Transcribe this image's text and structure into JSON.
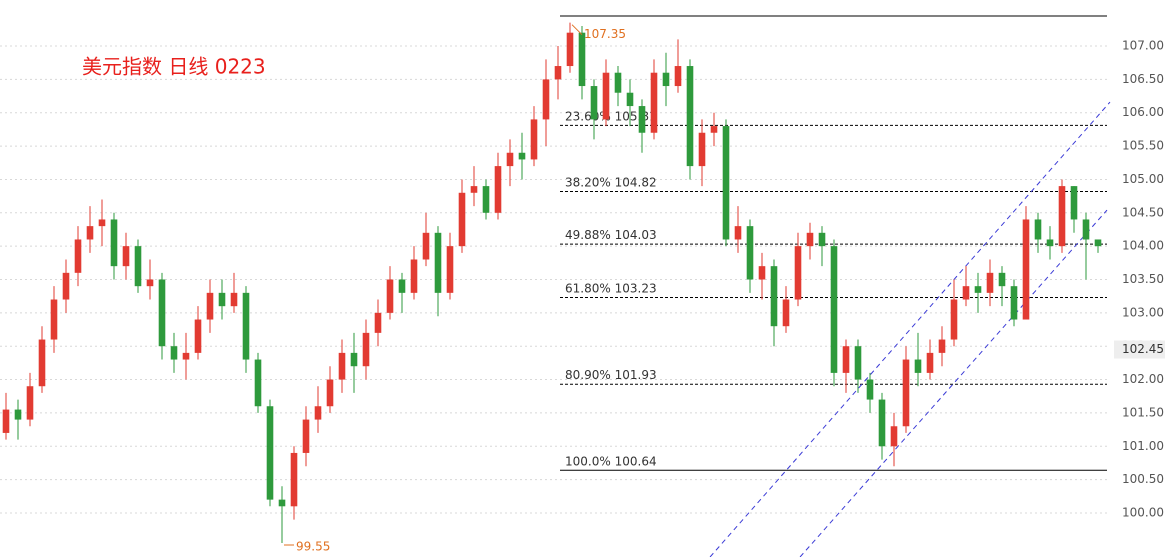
{
  "chart_data": {
    "type": "candlestick",
    "title": "美元指数 日线 0223",
    "up_color": "#e23b32",
    "down_color": "#2e9a3c",
    "xlim": [
      -0.5,
      92
    ],
    "ylim": [
      99.34,
      107.69
    ],
    "yticks": [
      {
        "value": 100,
        "label": "100.00"
      },
      {
        "value": 100.5,
        "label": "100.50"
      },
      {
        "value": 101,
        "label": "101.00"
      },
      {
        "value": 101.5,
        "label": "101.50"
      },
      {
        "value": 102,
        "label": "102.00"
      },
      {
        "value": 102.5,
        "label": "102.50"
      },
      {
        "value": 103,
        "label": "103.00"
      },
      {
        "value": 103.5,
        "label": "103.50"
      },
      {
        "value": 104,
        "label": "104.00"
      },
      {
        "value": 104.5,
        "label": "104.50"
      },
      {
        "value": 105,
        "label": "105.00"
      },
      {
        "value": 105.5,
        "label": "105.50"
      },
      {
        "value": 106,
        "label": "106.00"
      },
      {
        "value": 106.5,
        "label": "106.50"
      },
      {
        "value": 107,
        "label": "107.00"
      }
    ],
    "grid": true,
    "open": [
      101.2,
      101.55,
      101.4,
      101.9,
      102.6,
      103.2,
      103.6,
      104.1,
      104.3,
      104.4,
      103.7,
      104.0,
      103.4,
      103.5,
      102.5,
      102.3,
      102.4,
      102.9,
      103.3,
      103.1,
      103.3,
      102.3,
      101.6,
      100.2,
      100.1,
      100.9,
      101.4,
      101.6,
      102.0,
      102.4,
      102.2,
      102.7,
      103.0,
      103.5,
      103.3,
      103.8,
      104.2,
      103.3,
      104.0,
      104.8,
      104.9,
      104.5,
      105.2,
      105.4,
      105.3,
      105.9,
      106.5,
      106.7,
      107.2,
      106.4,
      105.9,
      106.6,
      106.3,
      106.1,
      105.7,
      106.6,
      106.4,
      106.7,
      105.2,
      105.7,
      105.8,
      104.1,
      104.3,
      103.5,
      103.7,
      102.8,
      103.2,
      104.0,
      104.2,
      104.0,
      102.1,
      102.5,
      102.0,
      101.7,
      101.0,
      101.3,
      102.3,
      102.1,
      102.4,
      102.6,
      103.2,
      103.4,
      103.3,
      103.6,
      103.4,
      102.9,
      104.4,
      104.1,
      104.0,
      104.9,
      104.4,
      104.1
    ],
    "high": [
      101.8,
      101.7,
      102.1,
      102.8,
      103.4,
      103.8,
      104.3,
      104.6,
      104.7,
      104.5,
      104.2,
      104.1,
      103.8,
      103.6,
      102.7,
      102.7,
      103.1,
      103.5,
      103.5,
      103.6,
      103.4,
      102.4,
      101.7,
      100.4,
      101.0,
      101.6,
      101.9,
      102.2,
      102.6,
      102.7,
      102.9,
      103.2,
      103.7,
      103.6,
      104.0,
      104.5,
      104.3,
      104.2,
      105.0,
      105.2,
      105.0,
      105.4,
      105.6,
      105.7,
      106.1,
      106.8,
      107.0,
      107.35,
      107.3,
      106.5,
      106.8,
      106.7,
      106.5,
      106.2,
      106.8,
      106.9,
      107.1,
      106.8,
      105.9,
      106.0,
      105.9,
      104.6,
      104.4,
      103.9,
      103.8,
      103.4,
      104.2,
      104.35,
      104.3,
      104.1,
      102.6,
      102.6,
      102.1,
      101.8,
      101.5,
      102.5,
      102.7,
      102.6,
      102.8,
      103.5,
      103.7,
      103.6,
      103.8,
      103.7,
      103.5,
      104.6,
      104.5,
      104.3,
      105.0,
      104.9,
      104.5,
      104.1
    ],
    "low": [
      101.1,
      101.1,
      101.3,
      101.8,
      102.4,
      103.0,
      103.4,
      103.9,
      104.0,
      103.5,
      103.5,
      103.3,
      103.2,
      102.3,
      102.1,
      102.0,
      102.3,
      102.7,
      102.9,
      103.0,
      102.1,
      101.5,
      100.1,
      99.55,
      99.9,
      100.7,
      101.2,
      101.5,
      101.8,
      101.8,
      102.0,
      102.5,
      102.9,
      103.0,
      103.2,
      103.7,
      102.95,
      103.2,
      103.9,
      104.6,
      104.4,
      104.4,
      104.9,
      105.0,
      105.2,
      105.5,
      106.2,
      106.6,
      106.2,
      105.6,
      105.8,
      106.1,
      105.8,
      105.4,
      105.6,
      106.1,
      106.3,
      105.0,
      104.9,
      105.5,
      104.0,
      103.9,
      103.3,
      103.2,
      102.5,
      102.7,
      103.1,
      103.8,
      103.7,
      101.9,
      101.8,
      101.8,
      101.5,
      100.8,
      100.7,
      101.2,
      101.9,
      102.0,
      102.2,
      102.5,
      103.1,
      103.0,
      103.1,
      103.1,
      102.8,
      102.9,
      103.9,
      103.8,
      103.9,
      104.2,
      103.5,
      103.9
    ],
    "close": [
      101.55,
      101.4,
      101.9,
      102.6,
      103.2,
      103.6,
      104.1,
      104.3,
      104.4,
      103.7,
      104.0,
      103.4,
      103.5,
      102.5,
      102.3,
      102.4,
      102.9,
      103.3,
      103.1,
      103.3,
      102.3,
      101.6,
      100.2,
      100.1,
      100.9,
      101.4,
      101.6,
      102.0,
      102.4,
      102.2,
      102.7,
      103.0,
      103.5,
      103.3,
      103.8,
      104.2,
      103.3,
      104.0,
      104.8,
      104.9,
      104.5,
      105.2,
      105.4,
      105.3,
      105.9,
      106.5,
      106.7,
      107.2,
      106.4,
      105.9,
      106.6,
      106.3,
      106.1,
      105.7,
      106.6,
      106.4,
      106.7,
      105.2,
      105.7,
      105.8,
      104.1,
      104.3,
      103.5,
      103.7,
      102.8,
      103.2,
      104.0,
      104.2,
      104.0,
      102.1,
      102.5,
      102.0,
      101.7,
      101.0,
      101.3,
      102.3,
      102.1,
      102.4,
      102.6,
      103.2,
      103.4,
      103.3,
      103.6,
      103.4,
      102.9,
      104.4,
      104.1,
      104.0,
      104.9,
      104.4,
      104.1,
      104.0
    ],
    "annotations": [
      107.35,
      99.55
    ],
    "base_line": 107.45,
    "fib_levels": [
      {
        "ratio": "23.60%",
        "value": 105.81
      },
      {
        "ratio": "38.20%",
        "value": 104.82
      },
      {
        "ratio": "49.88%",
        "value": 104.03
      },
      {
        "ratio": "61.80%",
        "value": 103.23
      },
      {
        "ratio": "80.90%",
        "value": 101.93
      },
      {
        "ratio": "100.0%",
        "value": 100.64
      }
    ],
    "channel": [
      {
        "x": [
          58.67,
          92
        ],
        "y": [
          99.34,
          106.16
        ]
      },
      {
        "x": [
          66.17,
          91.75
        ],
        "y": [
          99.34,
          104.54
        ]
      }
    ],
    "last_price": 102.45
  }
}
